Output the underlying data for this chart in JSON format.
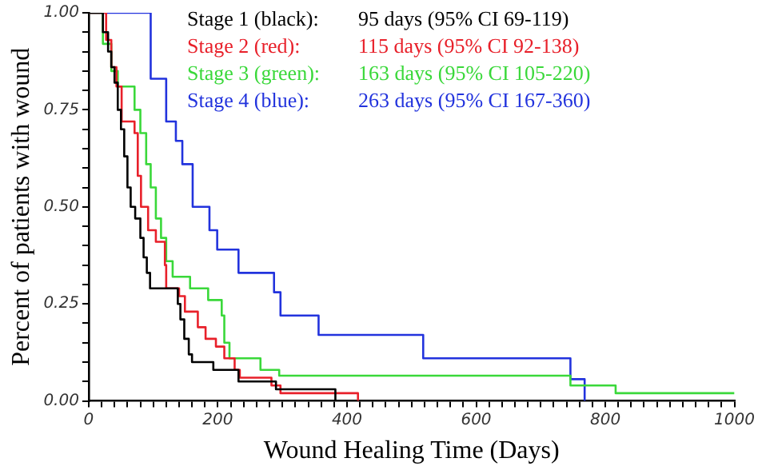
{
  "chart_data": {
    "type": "step",
    "xlabel": "Wound Healing Time (Days)",
    "ylabel": "Percent of patients with wound",
    "xlim": [
      0,
      1000
    ],
    "ylim": [
      0,
      1
    ],
    "xticks": [
      0,
      {
        "value": 20,
        "label": null
      },
      {
        "value": 40,
        "label": null
      },
      {
        "value": 60,
        "label": null
      },
      {
        "value": 80,
        "label": null
      },
      {
        "value": 100,
        "label": null
      },
      {
        "value": 120,
        "label": null
      },
      {
        "value": 140,
        "label": null
      },
      {
        "value": 160,
        "label": null
      },
      {
        "value": 180,
        "label": null
      },
      200,
      {
        "value": 220,
        "label": null
      },
      {
        "value": 240,
        "label": null
      },
      {
        "value": 260,
        "label": null
      },
      {
        "value": 280,
        "label": null
      },
      {
        "value": 300,
        "label": null
      },
      {
        "value": 320,
        "label": null
      },
      {
        "value": 340,
        "label": null
      },
      {
        "value": 360,
        "label": null
      },
      {
        "value": 380,
        "label": null
      },
      400,
      {
        "value": 420,
        "label": null
      },
      {
        "value": 440,
        "label": null
      },
      {
        "value": 460,
        "label": null
      },
      {
        "value": 480,
        "label": null
      },
      {
        "value": 500,
        "label": null
      },
      {
        "value": 520,
        "label": null
      },
      {
        "value": 540,
        "label": null
      },
      {
        "value": 560,
        "label": null
      },
      {
        "value": 580,
        "label": null
      },
      600,
      {
        "value": 620,
        "label": null
      },
      {
        "value": 640,
        "label": null
      },
      {
        "value": 660,
        "label": null
      },
      {
        "value": 680,
        "label": null
      },
      {
        "value": 700,
        "label": null
      },
      {
        "value": 720,
        "label": null
      },
      {
        "value": 740,
        "label": null
      },
      {
        "value": 760,
        "label": null
      },
      {
        "value": 780,
        "label": null
      },
      800,
      {
        "value": 820,
        "label": null
      },
      {
        "value": 840,
        "label": null
      },
      {
        "value": 860,
        "label": null
      },
      {
        "value": 880,
        "label": null
      },
      {
        "value": 900,
        "label": null
      },
      {
        "value": 920,
        "label": null
      },
      {
        "value": 940,
        "label": null
      },
      {
        "value": 960,
        "label": null
      },
      {
        "value": 980,
        "label": null
      },
      1000
    ],
    "yticks": [
      {
        "value": 0,
        "label": "0.00"
      },
      {
        "value": 0.05,
        "label": null
      },
      {
        "value": 0.1,
        "label": null
      },
      {
        "value": 0.15,
        "label": null
      },
      {
        "value": 0.2,
        "label": null
      },
      {
        "value": 0.25,
        "label": "0.25"
      },
      {
        "value": 0.3,
        "label": null
      },
      {
        "value": 0.35,
        "label": null
      },
      {
        "value": 0.4,
        "label": null
      },
      {
        "value": 0.45,
        "label": null
      },
      {
        "value": 0.5,
        "label": "0.50"
      },
      {
        "value": 0.55,
        "label": null
      },
      {
        "value": 0.6,
        "label": null
      },
      {
        "value": 0.65,
        "label": null
      },
      {
        "value": 0.7,
        "label": null
      },
      {
        "value": 0.75,
        "label": "0.75"
      },
      {
        "value": 0.8,
        "label": null
      },
      {
        "value": 0.85,
        "label": null
      },
      {
        "value": 0.9,
        "label": null
      },
      {
        "value": 0.95,
        "label": null
      },
      {
        "value": 1,
        "label": "1.00"
      }
    ],
    "grid": false,
    "legend": "top",
    "marker": "none",
    "line_style": "solid",
    "series": [
      {
        "name": "Stage 1 (black):",
        "color": "#000000",
        "x": [
          0,
          22,
          30,
          35,
          40,
          45,
          50,
          55,
          60,
          65,
          72,
          80,
          85,
          90,
          95,
          138,
          142,
          148,
          155,
          160,
          193,
          232,
          290,
          382
        ],
        "values": [
          1,
          0.95,
          0.9,
          0.86,
          0.82,
          0.75,
          0.7,
          0.63,
          0.55,
          0.5,
          0.47,
          0.42,
          0.37,
          0.33,
          0.29,
          0.25,
          0.21,
          0.16,
          0.12,
          0.1,
          0.08,
          0.05,
          0.03,
          0
        ]
      },
      {
        "name": "Stage 2 (red):",
        "color": "#e8202a",
        "x": [
          0,
          27,
          35,
          43,
          51,
          71,
          76,
          81,
          92,
          104,
          118,
          120,
          140,
          149,
          169,
          181,
          197,
          210,
          226,
          234,
          283,
          297,
          417
        ],
        "values": [
          1,
          0.93,
          0.86,
          0.81,
          0.72,
          0.69,
          0.58,
          0.5,
          0.44,
          0.41,
          0.35,
          0.29,
          0.27,
          0.23,
          0.19,
          0.16,
          0.14,
          0.11,
          0.08,
          0.06,
          0.04,
          0.02,
          0
        ]
      },
      {
        "name": "Stage 3 (green):",
        "color": "#3ad83a",
        "x": [
          0,
          22,
          35,
          45,
          71,
          80,
          89,
          96,
          104,
          112,
          120,
          130,
          157,
          185,
          206,
          210,
          218,
          266,
          295,
          746,
          816,
          1000
        ],
        "values": [
          1,
          0.92,
          0.85,
          0.81,
          0.75,
          0.69,
          0.61,
          0.55,
          0.47,
          0.42,
          0.36,
          0.32,
          0.29,
          0.26,
          0.22,
          0.15,
          0.11,
          0.08,
          0.065,
          0.04,
          0.02,
          0.02
        ]
      },
      {
        "name": "Stage 4 (blue):",
        "color": "#2233dd",
        "x": [
          0,
          96,
          120,
          135,
          145,
          161,
          187,
          199,
          232,
          287,
          297,
          356,
          518,
          746,
          768
        ],
        "values": [
          1,
          0.83,
          0.72,
          0.67,
          0.61,
          0.5,
          0.44,
          0.39,
          0.33,
          0.28,
          0.22,
          0.17,
          0.11,
          0.056,
          0
        ]
      }
    ],
    "annotations": [
      "95 days (95% CI 69-119)",
      "115 days (95% CI 92-138)",
      "163 days (95% CI 105-220)",
      "263 days (95% CI 167-360)"
    ]
  }
}
